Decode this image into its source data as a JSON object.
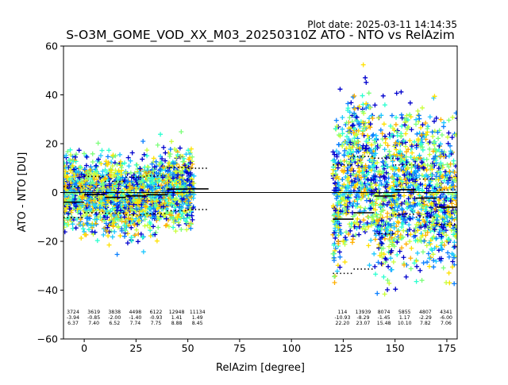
{
  "header": {
    "plot_date": "Plot date: 2025-03-11 14:14:35",
    "title": "S-O3M_GOME_VOD_XX_M03_20250310Z ATO - NTO vs RelAzim"
  },
  "chart_data": {
    "type": "scatter",
    "title": "S-O3M_GOME_VOD_XX_M03_20250310Z ATO - NTO vs RelAzim",
    "xlabel": "RelAzim [degree]",
    "ylabel": "ATO - NTO [DU]",
    "xlim": [
      -10,
      180
    ],
    "ylim": [
      -60,
      60
    ],
    "xticks": [
      0,
      25,
      50,
      75,
      100,
      125,
      150,
      175
    ],
    "yticks": [
      -60,
      -40,
      -20,
      0,
      20,
      40,
      60
    ],
    "grid": false,
    "marker": "+",
    "colormap": [
      "#0000cd",
      "#0a7fff",
      "#1ec8ff",
      "#2cffd0",
      "#7cff7a",
      "#c8ff3a",
      "#ffe100",
      "#ffb000"
    ],
    "zero_line": 0,
    "bins": [
      {
        "x0": -10,
        "x1": 0,
        "count": 3724,
        "mean": -3.94,
        "std": 6.37
      },
      {
        "x0": 0,
        "x1": 10,
        "count": 3619,
        "mean": -0.85,
        "std": 7.4
      },
      {
        "x0": 10,
        "x1": 20,
        "count": 3838,
        "mean": -2.0,
        "std": 6.52
      },
      {
        "x0": 20,
        "x1": 30,
        "count": 4498,
        "mean": -1.4,
        "std": 7.74
      },
      {
        "x0": 30,
        "x1": 40,
        "count": 6122,
        "mean": -0.93,
        "std": 7.75
      },
      {
        "x0": 40,
        "x1": 50,
        "count": 12948,
        "mean": 1.41,
        "std": 8.88
      },
      {
        "x0": 50,
        "x1": 60,
        "count": 11134,
        "mean": 1.49,
        "std": 8.45
      },
      {
        "x0": 120,
        "x1": 130,
        "count": 114,
        "mean": -10.93,
        "std": 22.2
      },
      {
        "x0": 130,
        "x1": 140,
        "count": 13939,
        "mean": -8.29,
        "std": 23.07
      },
      {
        "x0": 140,
        "x1": 150,
        "count": 8074,
        "mean": -1.45,
        "std": 15.48
      },
      {
        "x0": 150,
        "x1": 160,
        "count": 5855,
        "mean": 1.17,
        "std": 10.1
      },
      {
        "x0": 160,
        "x1": 170,
        "count": 4807,
        "mean": -2.29,
        "std": 7.82
      },
      {
        "x0": 170,
        "x1": 180,
        "count": 4341,
        "mean": -6.0,
        "std": 7.06
      }
    ],
    "scatter_clusters": [
      {
        "x0": -10,
        "x1": 53,
        "center": [
          [
            -10,
            2
          ],
          [
            -5,
            1
          ],
          [
            0,
            0
          ],
          [
            5,
            -1
          ],
          [
            10,
            -2
          ],
          [
            15,
            -1
          ],
          [
            20,
            -3
          ],
          [
            25,
            -2
          ],
          [
            30,
            -1
          ],
          [
            35,
            0
          ],
          [
            40,
            2
          ],
          [
            45,
            3
          ],
          [
            50,
            1
          ],
          [
            53,
            0
          ]
        ],
        "spread": 14
      },
      {
        "x0": 120,
        "x1": 180,
        "center": [
          [
            126,
            2
          ],
          [
            130,
            10
          ],
          [
            135,
            12
          ],
          [
            140,
            5
          ],
          [
            145,
            -5
          ],
          [
            150,
            0
          ],
          [
            155,
            5
          ],
          [
            160,
            2
          ],
          [
            165,
            0
          ],
          [
            170,
            -2
          ],
          [
            175,
            -3
          ],
          [
            180,
            -2
          ]
        ],
        "spread": 28
      }
    ]
  }
}
